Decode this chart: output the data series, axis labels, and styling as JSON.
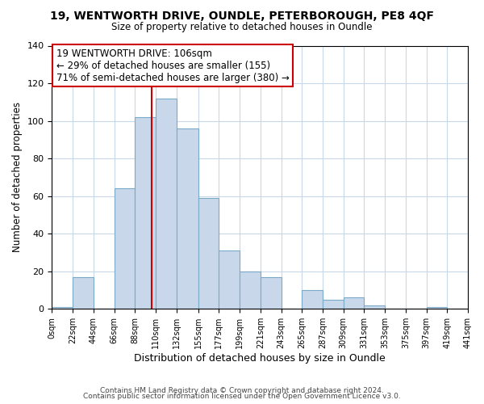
{
  "title": "19, WENTWORTH DRIVE, OUNDLE, PETERBOROUGH, PE8 4QF",
  "subtitle": "Size of property relative to detached houses in Oundle",
  "xlabel": "Distribution of detached houses by size in Oundle",
  "ylabel": "Number of detached properties",
  "bar_left_edges": [
    0,
    22,
    44,
    66,
    88,
    110,
    132,
    155,
    177,
    199,
    221,
    243,
    265,
    287,
    309,
    331,
    353,
    375,
    397,
    419
  ],
  "bar_widths": [
    22,
    22,
    22,
    22,
    22,
    22,
    23,
    22,
    22,
    22,
    22,
    22,
    22,
    22,
    22,
    22,
    22,
    22,
    22,
    22
  ],
  "bar_heights": [
    1,
    17,
    0,
    64,
    102,
    112,
    96,
    59,
    31,
    20,
    17,
    0,
    10,
    5,
    6,
    2,
    0,
    0,
    1,
    0
  ],
  "bar_color": "#c8d8ea",
  "bar_edge_color": "#7aaac8",
  "property_line_x": 106,
  "property_line_color": "#cc0000",
  "annotation_title": "19 WENTWORTH DRIVE: 106sqm",
  "annotation_line1": "← 29% of detached houses are smaller (155)",
  "annotation_line2": "71% of semi-detached houses are larger (380) →",
  "annotation_box_color": "#ffffff",
  "annotation_box_edge_color": "#cc0000",
  "xlim": [
    0,
    441
  ],
  "ylim": [
    0,
    140
  ],
  "xtick_positions": [
    0,
    22,
    44,
    66,
    88,
    110,
    132,
    155,
    177,
    199,
    221,
    243,
    265,
    287,
    309,
    331,
    353,
    375,
    397,
    419,
    441
  ],
  "xtick_labels": [
    "0sqm",
    "22sqm",
    "44sqm",
    "66sqm",
    "88sqm",
    "110sqm",
    "132sqm",
    "155sqm",
    "177sqm",
    "199sqm",
    "221sqm",
    "243sqm",
    "265sqm",
    "287sqm",
    "309sqm",
    "331sqm",
    "353sqm",
    "375sqm",
    "397sqm",
    "419sqm",
    "441sqm"
  ],
  "ytick_positions": [
    0,
    20,
    40,
    60,
    80,
    100,
    120,
    140
  ],
  "grid_color": "#c8d8e8",
  "background_color": "#ffffff",
  "footer_line1": "Contains HM Land Registry data © Crown copyright and database right 2024.",
  "footer_line2": "Contains public sector information licensed under the Open Government Licence v3.0."
}
